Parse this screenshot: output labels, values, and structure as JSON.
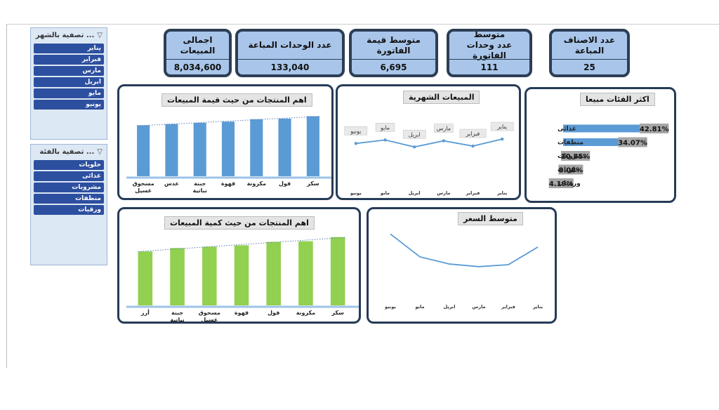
{
  "slicers": [
    {
      "title": "تصفية بالشهر ...",
      "items": [
        "يناير",
        "فبراير",
        "مارس",
        "ابريل",
        "مايو",
        "يونيو"
      ]
    },
    {
      "title": "تصفية بالفئة ...",
      "items": [
        "حلويات",
        "غذائى",
        "مشروبات",
        "منظفات",
        "ورقيات"
      ]
    }
  ],
  "kpis": [
    {
      "label": "اجمالى المبيعات",
      "value": "8,034,600"
    },
    {
      "label": "عدد الوحدات المباعة",
      "value": "133,040"
    },
    {
      "label": "متوسط قيمة الفاتورة",
      "value": "6,695"
    },
    {
      "label": "متوسط\nعدد وحدات الفاتورة",
      "value": "111"
    },
    {
      "label": "عدد الاصناف المباعة",
      "value": "25"
    }
  ],
  "colors": {
    "blue_bar": "#5b9bd5",
    "green_bar": "#92d050",
    "line": "#5b9bd5",
    "panel_border": "#253b57",
    "kpi_fill": "#a9c6ea",
    "slicer_item": "#2d4f9f"
  },
  "chart_data": [
    {
      "type": "bar",
      "title": "اهم المنتجات من حيث قيمة المبيعات",
      "categories": [
        "سكر",
        "فول",
        "مكرونة",
        "قهوة",
        "جبنة نباتية",
        "عدس",
        "مسحوق غسيل"
      ],
      "values": [
        100,
        96,
        95,
        91,
        89,
        87,
        85
      ],
      "trendline": true,
      "ylim": [
        0,
        110
      ]
    },
    {
      "type": "line",
      "title": "المبيعات الشهرية",
      "categories": [
        "يناير",
        "فبراير",
        "مارس",
        "ابريل",
        "مايو",
        "يونيو"
      ],
      "values": [
        62,
        54,
        60,
        53,
        61,
        57
      ],
      "point_labels": [
        "يناير",
        "فبراير",
        "مارس",
        "ابريل",
        "مايو",
        "يونيو"
      ],
      "ylim": [
        0,
        100
      ]
    },
    {
      "type": "bar",
      "orientation": "horizontal",
      "title": "اكثر الفئات مبيعا",
      "categories": [
        "غذائى",
        "منظفات",
        "مشروبات",
        "حلويات",
        "ورقيات"
      ],
      "values": [
        42.81,
        34.07,
        10.85,
        8.08,
        4.19
      ],
      "value_labels": [
        "42.81%",
        "34.07%",
        "10.85%",
        "8.08%",
        "4.19%"
      ],
      "xlim": [
        0,
        45
      ]
    },
    {
      "type": "bar",
      "title": "اهم المنتجات من حيث كمية المبيعات",
      "categories": [
        "سكر",
        "مكرونة",
        "فول",
        "قهوة",
        "مسحوق غسيل",
        "جبنة نباتية",
        "أرز"
      ],
      "values": [
        100,
        94,
        93,
        88,
        86,
        84,
        79
      ],
      "trendline": true,
      "ylim": [
        0,
        110
      ]
    },
    {
      "type": "line",
      "title": "متوسط السعر",
      "categories": [
        "يناير",
        "فبراير",
        "مارس",
        "ابريل",
        "مايو",
        "يونيو"
      ],
      "values": [
        70,
        43,
        40,
        44,
        55,
        90
      ],
      "ylim": [
        0,
        100
      ]
    }
  ]
}
